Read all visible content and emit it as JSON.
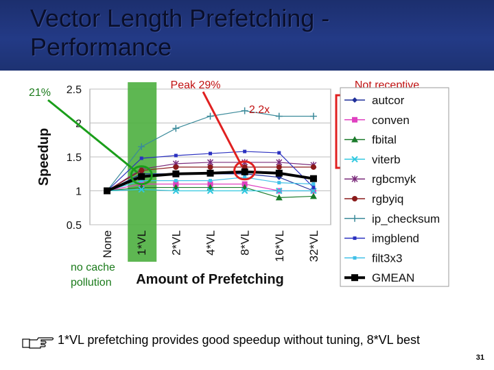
{
  "slide": {
    "title": "Vector Length Prefetching - Performance",
    "footer": "1*VL prefetching provides good speedup without tuning, 8*VL best",
    "page_number": "31"
  },
  "annotations": {
    "left_pct": "21%",
    "peak": "Peak 29%",
    "not_receptive": "Not receptive",
    "speedup_2_2x": "2.2x",
    "no_cache_line1": "no cache",
    "no_cache_line2": "pollution"
  },
  "colors": {
    "title_bar": "#233a86",
    "highlight_band": "#4caf3f",
    "red_callout": "#e02020",
    "green_callout": "#1a9e1a"
  },
  "chart_data": {
    "type": "line",
    "ylabel": "Speedup",
    "xlabel": "Amount of Prefetching",
    "ylim": [
      0.5,
      2.5
    ],
    "yticks": [
      "2.5",
      "2",
      "1.5",
      "1",
      "0.5"
    ],
    "categories": [
      "None",
      "1*VL",
      "2*VL",
      "4*VL",
      "8*VL",
      "16*VL",
      "32*VL"
    ],
    "series": [
      {
        "name": "autcor",
        "color": "#1f2f9a",
        "marker": "diamond",
        "values": [
          1.0,
          1.25,
          1.25,
          1.25,
          1.25,
          1.2,
          1.0
        ]
      },
      {
        "name": "conven",
        "color": "#e040c0",
        "marker": "square",
        "values": [
          1.0,
          1.1,
          1.1,
          1.1,
          1.1,
          1.0,
          1.0
        ]
      },
      {
        "name": "fbital",
        "color": "#1a7a2a",
        "marker": "triangle",
        "values": [
          1.0,
          1.05,
          1.05,
          1.05,
          1.05,
          0.9,
          0.92
        ]
      },
      {
        "name": "viterb",
        "color": "#30c8e0",
        "marker": "x",
        "values": [
          1.0,
          1.02,
          1.0,
          1.0,
          1.0,
          1.0,
          1.0
        ]
      },
      {
        "name": "rgbcmyk",
        "color": "#7a2a7a",
        "marker": "star",
        "values": [
          1.0,
          1.32,
          1.4,
          1.42,
          1.42,
          1.42,
          1.38
        ]
      },
      {
        "name": "rgbyiq",
        "color": "#8a1a1a",
        "marker": "circle",
        "values": [
          1.0,
          1.3,
          1.35,
          1.35,
          1.35,
          1.35,
          1.35
        ]
      },
      {
        "name": "ip_checksum",
        "color": "#3a8a9a",
        "marker": "plus",
        "values": [
          1.0,
          1.65,
          1.92,
          2.1,
          2.18,
          2.1,
          2.1
        ]
      },
      {
        "name": "imgblend",
        "color": "#2a30c0",
        "marker": "smallsquare",
        "values": [
          1.0,
          1.48,
          1.52,
          1.55,
          1.58,
          1.56,
          1.05
        ]
      },
      {
        "name": "filt3x3",
        "color": "#40c0e8",
        "marker": "smallsquare",
        "values": [
          1.0,
          1.15,
          1.15,
          1.15,
          1.2,
          1.12,
          1.1
        ]
      },
      {
        "name": "GMEAN",
        "color": "#000000",
        "marker": "bigsquare",
        "values": [
          1.0,
          1.21,
          1.25,
          1.26,
          1.28,
          1.26,
          1.18
        ]
      }
    ],
    "grid": true,
    "legend_position": "right"
  }
}
